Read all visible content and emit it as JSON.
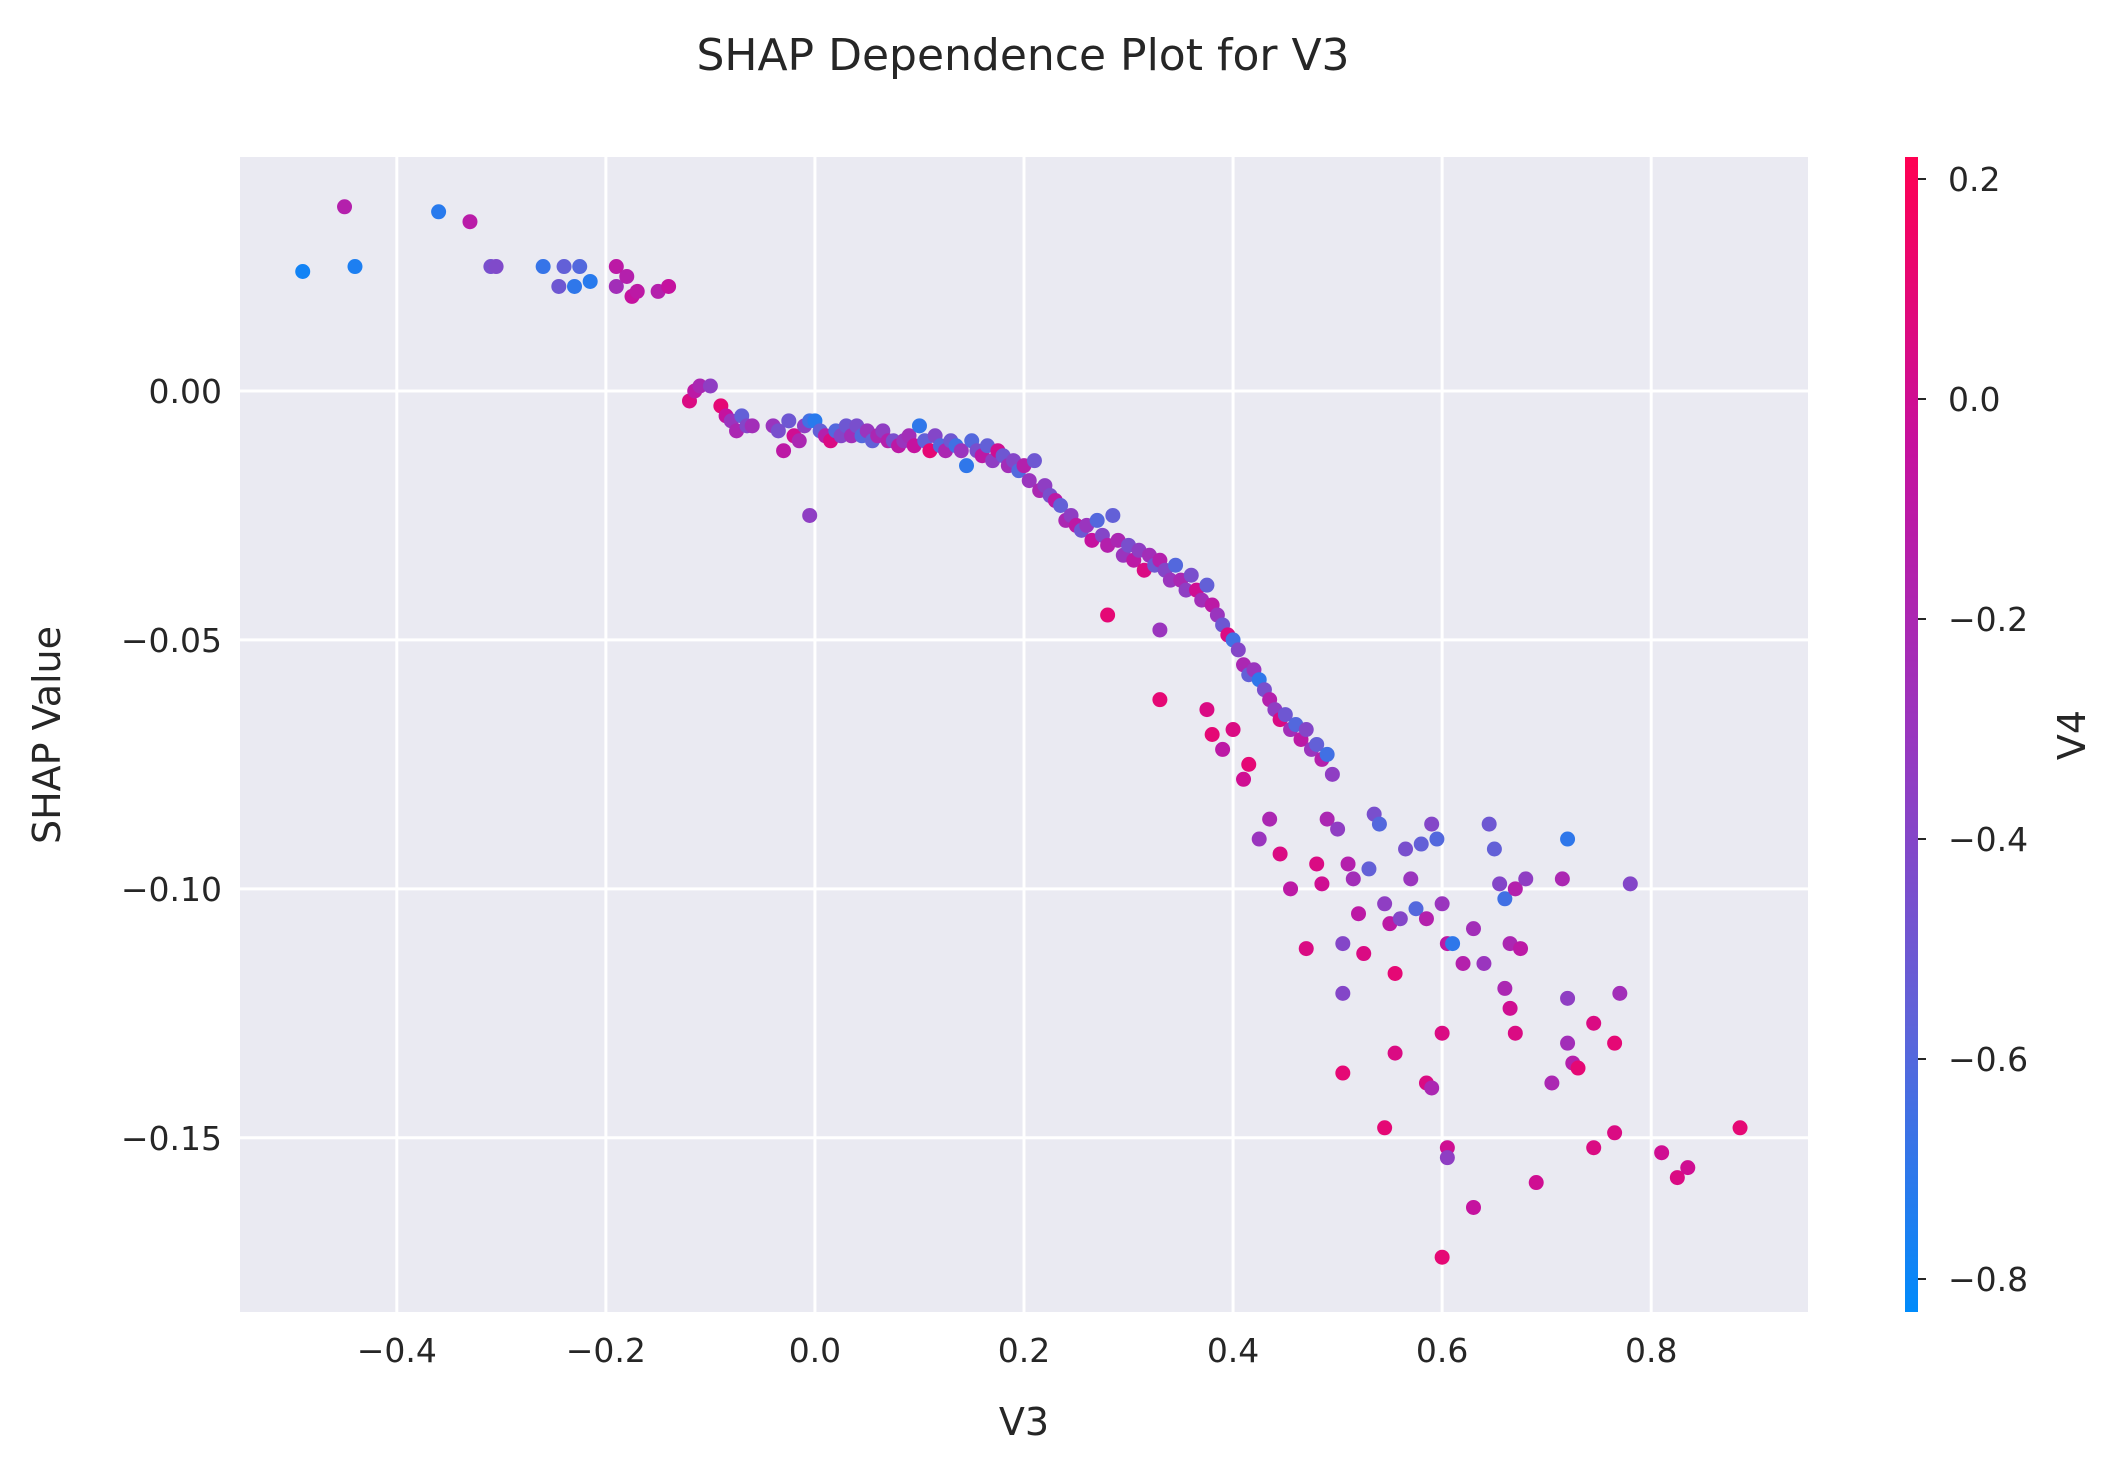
{
  "chart_data": {
    "type": "scatter",
    "title": "SHAP Dependence Plot for V3",
    "xlabel": "V3",
    "ylabel": "SHAP Value",
    "xlim": [
      -0.55,
      0.95
    ],
    "ylim": [
      -0.185,
      0.047
    ],
    "x_ticks": [
      -0.4,
      -0.2,
      0.0,
      0.2,
      0.4,
      0.6,
      0.8
    ],
    "x_tick_labels": [
      "−0.4",
      "−0.2",
      "0.0",
      "0.2",
      "0.4",
      "0.6",
      "0.8"
    ],
    "y_ticks": [
      0.0,
      -0.05,
      -0.1,
      -0.15
    ],
    "y_tick_labels": [
      "0.00",
      "−0.05",
      "−0.10",
      "−0.15"
    ],
    "grid": true,
    "background_color": "#eaeaf2",
    "colorbar": {
      "label": "V4",
      "range": [
        -0.83,
        0.22
      ],
      "ticks": [
        0.2,
        0.0,
        -0.2,
        -0.4,
        -0.6,
        -0.8
      ],
      "tick_labels": [
        "0.2",
        "0.0",
        "−0.2",
        "−0.4",
        "−0.6",
        "−0.8"
      ],
      "colormap": [
        "#008bfb",
        "#5f63d9",
        "#9936bf",
        "#c6119e",
        "#ff0052"
      ]
    },
    "points": [
      [
        -0.49,
        0.024,
        -0.78
      ],
      [
        -0.44,
        0.025,
        -0.75
      ],
      [
        -0.45,
        0.037,
        -0.15
      ],
      [
        -0.36,
        0.036,
        -0.72
      ],
      [
        -0.33,
        0.034,
        -0.12
      ],
      [
        -0.31,
        0.025,
        -0.45
      ],
      [
        -0.305,
        0.025,
        -0.42
      ],
      [
        -0.26,
        0.025,
        -0.68
      ],
      [
        -0.245,
        0.021,
        -0.5
      ],
      [
        -0.24,
        0.025,
        -0.55
      ],
      [
        -0.23,
        0.021,
        -0.7
      ],
      [
        -0.225,
        0.025,
        -0.6
      ],
      [
        -0.215,
        0.022,
        -0.72
      ],
      [
        -0.19,
        0.025,
        -0.1
      ],
      [
        -0.19,
        0.021,
        -0.25
      ],
      [
        -0.18,
        0.023,
        -0.15
      ],
      [
        -0.175,
        0.019,
        -0.05
      ],
      [
        -0.17,
        0.02,
        -0.1
      ],
      [
        -0.15,
        0.02,
        -0.15
      ],
      [
        -0.14,
        0.021,
        -0.05
      ],
      [
        -0.12,
        -0.002,
        0.05
      ],
      [
        -0.115,
        0.0,
        -0.1
      ],
      [
        -0.11,
        0.001,
        -0.2
      ],
      [
        -0.1,
        0.001,
        -0.35
      ],
      [
        -0.09,
        -0.003,
        0.1
      ],
      [
        -0.085,
        -0.005,
        -0.05
      ],
      [
        -0.08,
        -0.006,
        -0.3
      ],
      [
        -0.075,
        -0.008,
        -0.2
      ],
      [
        -0.07,
        -0.005,
        -0.55
      ],
      [
        -0.065,
        -0.007,
        -0.4
      ],
      [
        -0.06,
        -0.007,
        -0.25
      ],
      [
        -0.04,
        -0.007,
        -0.3
      ],
      [
        -0.035,
        -0.008,
        -0.45
      ],
      [
        -0.03,
        -0.012,
        -0.1
      ],
      [
        -0.025,
        -0.006,
        -0.5
      ],
      [
        -0.02,
        -0.009,
        0.0
      ],
      [
        -0.015,
        -0.01,
        -0.2
      ],
      [
        -0.01,
        -0.007,
        -0.35
      ],
      [
        -0.005,
        -0.006,
        -0.65
      ],
      [
        0.0,
        -0.006,
        -0.72
      ],
      [
        -0.005,
        -0.025,
        -0.35
      ],
      [
        0.005,
        -0.008,
        -0.55
      ],
      [
        0.01,
        -0.009,
        -0.15
      ],
      [
        0.015,
        -0.01,
        0.05
      ],
      [
        0.02,
        -0.008,
        -0.6
      ],
      [
        0.025,
        -0.009,
        -0.4
      ],
      [
        0.03,
        -0.007,
        -0.5
      ],
      [
        0.035,
        -0.009,
        -0.25
      ],
      [
        0.04,
        -0.007,
        -0.45
      ],
      [
        0.045,
        -0.009,
        -0.6
      ],
      [
        0.05,
        -0.008,
        -0.3
      ],
      [
        0.055,
        -0.01,
        -0.55
      ],
      [
        0.06,
        -0.009,
        -0.2
      ],
      [
        0.065,
        -0.008,
        -0.35
      ],
      [
        0.07,
        -0.01,
        -0.15
      ],
      [
        0.075,
        -0.01,
        -0.45
      ],
      [
        0.08,
        -0.011,
        -0.1
      ],
      [
        0.085,
        -0.01,
        -0.3
      ],
      [
        0.09,
        -0.009,
        -0.25
      ],
      [
        0.095,
        -0.011,
        -0.05
      ],
      [
        0.1,
        -0.007,
        -0.7
      ],
      [
        0.105,
        -0.01,
        -0.55
      ],
      [
        0.11,
        -0.012,
        0.1
      ],
      [
        0.115,
        -0.009,
        -0.4
      ],
      [
        0.12,
        -0.011,
        -0.6
      ],
      [
        0.125,
        -0.012,
        -0.2
      ],
      [
        0.13,
        -0.01,
        -0.5
      ],
      [
        0.135,
        -0.011,
        -0.65
      ],
      [
        0.14,
        -0.012,
        -0.3
      ],
      [
        0.145,
        -0.015,
        -0.7
      ],
      [
        0.15,
        -0.01,
        -0.6
      ],
      [
        0.155,
        -0.012,
        -0.45
      ],
      [
        0.16,
        -0.013,
        -0.1
      ],
      [
        0.165,
        -0.011,
        -0.55
      ],
      [
        0.17,
        -0.014,
        -0.35
      ],
      [
        0.175,
        -0.012,
        0.0
      ],
      [
        0.18,
        -0.013,
        -0.5
      ],
      [
        0.185,
        -0.015,
        -0.25
      ],
      [
        0.19,
        -0.014,
        -0.4
      ],
      [
        0.195,
        -0.016,
        -0.6
      ],
      [
        0.2,
        -0.015,
        -0.15
      ],
      [
        0.205,
        -0.018,
        -0.3
      ],
      [
        0.21,
        -0.014,
        -0.5
      ],
      [
        0.215,
        -0.02,
        -0.2
      ],
      [
        0.22,
        -0.019,
        -0.35
      ],
      [
        0.225,
        -0.021,
        -0.45
      ],
      [
        0.23,
        -0.022,
        -0.1
      ],
      [
        0.235,
        -0.023,
        -0.55
      ],
      [
        0.24,
        -0.026,
        -0.2
      ],
      [
        0.245,
        -0.025,
        -0.35
      ],
      [
        0.25,
        -0.027,
        -0.1
      ],
      [
        0.255,
        -0.028,
        -0.5
      ],
      [
        0.26,
        -0.027,
        -0.3
      ],
      [
        0.265,
        -0.03,
        -0.05
      ],
      [
        0.27,
        -0.026,
        -0.6
      ],
      [
        0.275,
        -0.029,
        -0.4
      ],
      [
        0.28,
        -0.031,
        -0.15
      ],
      [
        0.285,
        -0.025,
        -0.55
      ],
      [
        0.29,
        -0.03,
        -0.2
      ],
      [
        0.295,
        -0.033,
        -0.3
      ],
      [
        0.3,
        -0.031,
        -0.45
      ],
      [
        0.305,
        -0.034,
        -0.1
      ],
      [
        0.31,
        -0.032,
        -0.35
      ],
      [
        0.315,
        -0.036,
        0.05
      ],
      [
        0.32,
        -0.033,
        -0.25
      ],
      [
        0.325,
        -0.035,
        -0.5
      ],
      [
        0.33,
        -0.034,
        -0.15
      ],
      [
        0.335,
        -0.036,
        -0.4
      ],
      [
        0.34,
        -0.038,
        -0.3
      ],
      [
        0.345,
        -0.035,
        -0.6
      ],
      [
        0.35,
        -0.038,
        -0.2
      ],
      [
        0.355,
        -0.04,
        -0.35
      ],
      [
        0.36,
        -0.037,
        -0.45
      ],
      [
        0.365,
        -0.04,
        0.0
      ],
      [
        0.37,
        -0.042,
        -0.25
      ],
      [
        0.375,
        -0.039,
        -0.55
      ],
      [
        0.38,
        -0.043,
        -0.1
      ],
      [
        0.385,
        -0.045,
        -0.3
      ],
      [
        0.39,
        -0.047,
        -0.5
      ],
      [
        0.395,
        -0.049,
        0.05
      ],
      [
        0.4,
        -0.05,
        -0.65
      ],
      [
        0.405,
        -0.052,
        -0.4
      ],
      [
        0.41,
        -0.055,
        -0.2
      ],
      [
        0.415,
        -0.057,
        -0.55
      ],
      [
        0.42,
        -0.056,
        -0.3
      ],
      [
        0.425,
        -0.058,
        -0.7
      ],
      [
        0.43,
        -0.06,
        -0.45
      ],
      [
        0.435,
        -0.062,
        -0.15
      ],
      [
        0.44,
        -0.064,
        -0.35
      ],
      [
        0.445,
        -0.066,
        0.05
      ],
      [
        0.45,
        -0.065,
        -0.5
      ],
      [
        0.455,
        -0.068,
        -0.25
      ],
      [
        0.46,
        -0.067,
        -0.6
      ],
      [
        0.465,
        -0.07,
        -0.1
      ],
      [
        0.47,
        -0.068,
        -0.4
      ],
      [
        0.475,
        -0.072,
        -0.3
      ],
      [
        0.48,
        -0.071,
        -0.55
      ],
      [
        0.485,
        -0.074,
        -0.15
      ],
      [
        0.49,
        -0.073,
        -0.65
      ],
      [
        0.495,
        -0.077,
        -0.35
      ],
      [
        0.28,
        -0.045,
        0.1
      ],
      [
        0.33,
        -0.062,
        0.1
      ],
      [
        0.33,
        -0.048,
        -0.3
      ],
      [
        0.375,
        -0.064,
        0.05
      ],
      [
        0.38,
        -0.069,
        0.1
      ],
      [
        0.39,
        -0.072,
        -0.1
      ],
      [
        0.4,
        -0.068,
        0.05
      ],
      [
        0.41,
        -0.078,
        0.0
      ],
      [
        0.415,
        -0.075,
        0.1
      ],
      [
        0.425,
        -0.09,
        -0.3
      ],
      [
        0.435,
        -0.086,
        -0.2
      ],
      [
        0.445,
        -0.093,
        0.05
      ],
      [
        0.455,
        -0.1,
        -0.1
      ],
      [
        0.47,
        -0.112,
        0.05
      ],
      [
        0.48,
        -0.095,
        0.05
      ],
      [
        0.485,
        -0.099,
        0.0
      ],
      [
        0.49,
        -0.086,
        -0.2
      ],
      [
        0.5,
        -0.088,
        -0.35
      ],
      [
        0.505,
        -0.111,
        -0.4
      ],
      [
        0.51,
        -0.095,
        -0.15
      ],
      [
        0.515,
        -0.098,
        -0.25
      ],
      [
        0.52,
        -0.105,
        -0.1
      ],
      [
        0.525,
        -0.113,
        0.05
      ],
      [
        0.53,
        -0.096,
        -0.55
      ],
      [
        0.535,
        -0.085,
        -0.45
      ],
      [
        0.54,
        -0.087,
        -0.6
      ],
      [
        0.545,
        -0.103,
        -0.35
      ],
      [
        0.55,
        -0.107,
        -0.1
      ],
      [
        0.555,
        -0.117,
        0.1
      ],
      [
        0.56,
        -0.106,
        -0.4
      ],
      [
        0.565,
        -0.092,
        -0.45
      ],
      [
        0.57,
        -0.098,
        -0.3
      ],
      [
        0.575,
        -0.104,
        -0.6
      ],
      [
        0.58,
        -0.091,
        -0.55
      ],
      [
        0.585,
        -0.106,
        -0.15
      ],
      [
        0.59,
        -0.087,
        -0.4
      ],
      [
        0.595,
        -0.09,
        -0.6
      ],
      [
        0.6,
        -0.103,
        -0.3
      ],
      [
        0.605,
        -0.111,
        -0.1
      ],
      [
        0.61,
        -0.111,
        -0.7
      ],
      [
        0.62,
        -0.115,
        -0.15
      ],
      [
        0.63,
        -0.108,
        -0.25
      ],
      [
        0.64,
        -0.115,
        -0.3
      ],
      [
        0.645,
        -0.087,
        -0.5
      ],
      [
        0.65,
        -0.092,
        -0.55
      ],
      [
        0.655,
        -0.099,
        -0.4
      ],
      [
        0.66,
        -0.102,
        -0.65
      ],
      [
        0.665,
        -0.111,
        -0.2
      ],
      [
        0.67,
        -0.1,
        -0.15
      ],
      [
        0.675,
        -0.112,
        -0.1
      ],
      [
        0.68,
        -0.098,
        -0.35
      ],
      [
        0.72,
        -0.09,
        -0.7
      ],
      [
        0.72,
        -0.122,
        -0.35
      ],
      [
        0.715,
        -0.098,
        -0.2
      ],
      [
        0.77,
        -0.121,
        -0.25
      ],
      [
        0.78,
        -0.099,
        -0.4
      ],
      [
        0.505,
        -0.121,
        -0.4
      ],
      [
        0.505,
        -0.137,
        0.1
      ],
      [
        0.545,
        -0.148,
        0.1
      ],
      [
        0.555,
        -0.133,
        0.05
      ],
      [
        0.585,
        -0.139,
        0.05
      ],
      [
        0.59,
        -0.14,
        -0.2
      ],
      [
        0.6,
        -0.129,
        0.05
      ],
      [
        0.605,
        -0.152,
        0.0
      ],
      [
        0.605,
        -0.154,
        -0.35
      ],
      [
        0.6,
        -0.174,
        0.1
      ],
      [
        0.63,
        -0.164,
        -0.05
      ],
      [
        0.66,
        -0.12,
        -0.2
      ],
      [
        0.665,
        -0.124,
        0.0
      ],
      [
        0.67,
        -0.129,
        0.05
      ],
      [
        0.69,
        -0.159,
        0.0
      ],
      [
        0.705,
        -0.139,
        -0.2
      ],
      [
        0.72,
        -0.131,
        -0.25
      ],
      [
        0.725,
        -0.135,
        -0.15
      ],
      [
        0.73,
        -0.136,
        0.1
      ],
      [
        0.745,
        -0.127,
        0.05
      ],
      [
        0.745,
        -0.152,
        0.05
      ],
      [
        0.765,
        -0.131,
        0.1
      ],
      [
        0.765,
        -0.149,
        0.05
      ],
      [
        0.81,
        -0.153,
        0.0
      ],
      [
        0.825,
        -0.158,
        0.05
      ],
      [
        0.835,
        -0.156,
        0.0
      ],
      [
        0.885,
        -0.148,
        0.1
      ]
    ]
  }
}
